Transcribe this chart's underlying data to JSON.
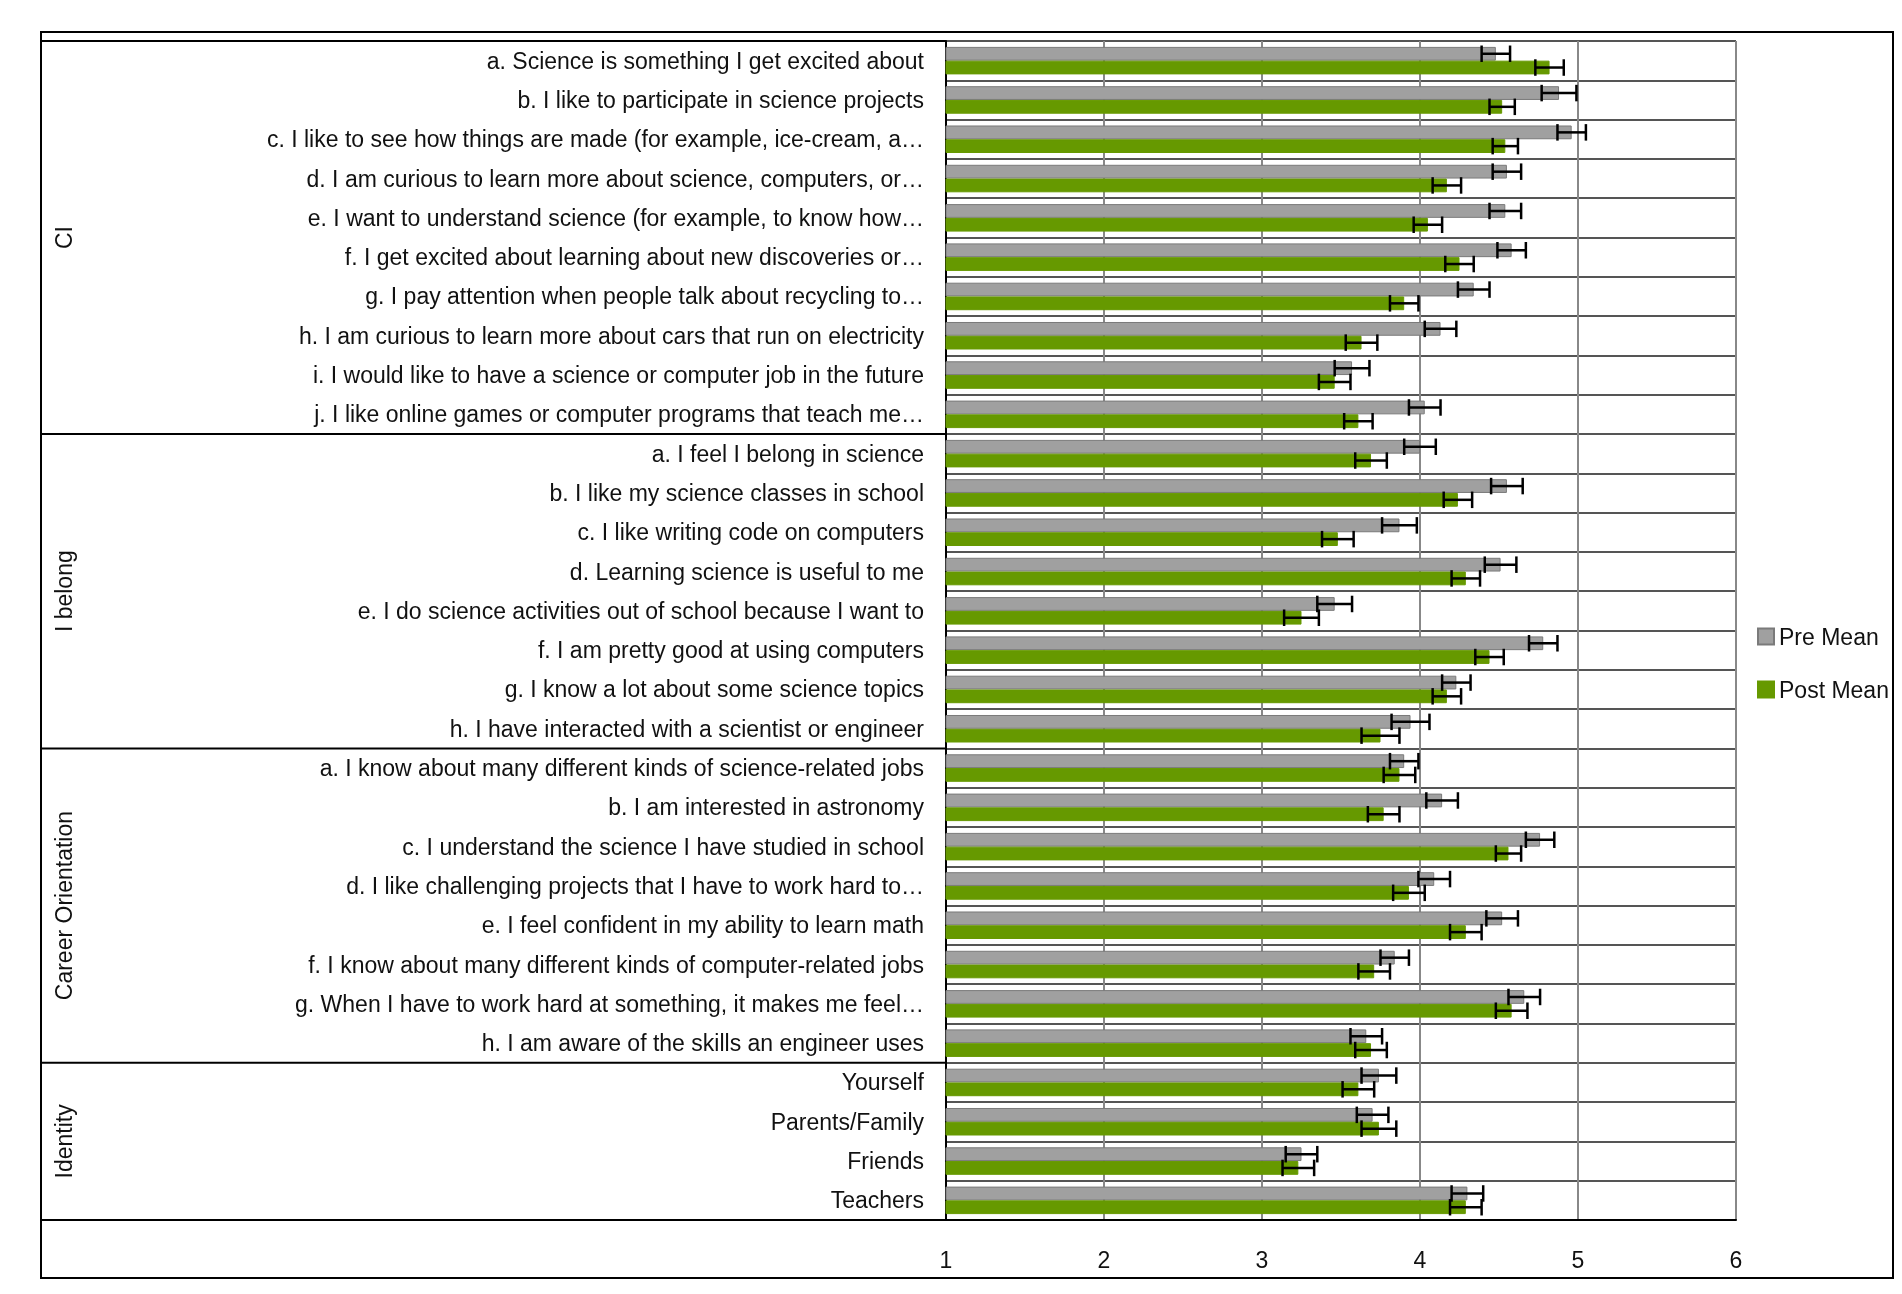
{
  "chart_data": {
    "type": "bar",
    "orientation": "horizontal",
    "categories": [
      "a. Science is something I get excited about",
      "b. I like to participate in science projects",
      "c. I like to see how things are made (for example, ice-cream, a…",
      "d. I am curious to learn more about science, computers, or…",
      "e. I want to understand science (for example, to know how…",
      "f. I get excited about learning about new discoveries or…",
      "g. I pay attention when people talk about recycling to…",
      "h. I am curious to learn more about cars that run on electricity",
      "i. I would like to have a science or computer job in the future",
      "j. I like online games or computer programs that teach me…",
      "a. I feel I belong in science",
      "b. I like my science classes in school",
      "c. I like writing code on computers",
      "d. Learning science is useful to me",
      "e. I do science activities out of school because I want to",
      "f. I am pretty good at using computers",
      "g. I know a lot about some science topics",
      "h. I have interacted with a scientist or engineer",
      "a. I know about many different kinds of science-related jobs",
      "b. I am interested in astronomy",
      "c. I understand the science I have studied in school",
      "d. I like challenging projects that I have to work hard to…",
      "e. I feel confident in my ability to learn math",
      "f. I know about many different kinds of computer-related jobs",
      "g. When I have to work hard at something, it makes me feel…",
      "h. I am aware of the skills an engineer uses",
      "Yourself",
      "Parents/Family",
      "Friends",
      "Teachers"
    ],
    "series": [
      {
        "name": "Pre Mean",
        "color": "#a0a0a0",
        "values": [
          4.48,
          4.88,
          4.96,
          4.55,
          4.54,
          4.58,
          4.34,
          4.13,
          3.57,
          4.03,
          4.0,
          4.55,
          3.87,
          4.51,
          3.46,
          4.78,
          4.23,
          3.94,
          3.9,
          4.14,
          4.76,
          4.09,
          4.52,
          3.84,
          4.66,
          3.66,
          3.74,
          3.7,
          3.25,
          4.3
        ],
        "errors": [
          0.09,
          0.11,
          0.09,
          0.09,
          0.1,
          0.09,
          0.1,
          0.1,
          0.11,
          0.1,
          0.1,
          0.1,
          0.11,
          0.1,
          0.11,
          0.09,
          0.09,
          0.12,
          0.09,
          0.1,
          0.09,
          0.1,
          0.1,
          0.09,
          0.1,
          0.1,
          0.11,
          0.1,
          0.1,
          0.1
        ]
      },
      {
        "name": "Post Mean",
        "color": "#669900",
        "values": [
          4.82,
          4.52,
          4.54,
          4.17,
          4.05,
          4.25,
          3.9,
          3.63,
          3.46,
          3.61,
          3.69,
          4.24,
          3.48,
          4.29,
          3.25,
          4.44,
          4.17,
          3.75,
          3.87,
          3.77,
          4.56,
          3.93,
          4.29,
          3.71,
          4.58,
          3.69,
          3.61,
          3.74,
          3.23,
          4.29
        ],
        "errors": [
          0.09,
          0.08,
          0.08,
          0.09,
          0.09,
          0.09,
          0.09,
          0.1,
          0.1,
          0.09,
          0.1,
          0.09,
          0.1,
          0.09,
          0.11,
          0.09,
          0.09,
          0.12,
          0.1,
          0.1,
          0.08,
          0.1,
          0.1,
          0.1,
          0.1,
          0.1,
          0.1,
          0.11,
          0.1,
          0.1
        ]
      }
    ],
    "xlim": [
      1,
      6
    ],
    "xticks": [
      1,
      2,
      3,
      4,
      5,
      6
    ],
    "grid": true,
    "legend": "right",
    "annotations": [
      "CI",
      "I belong",
      "Career Orientation",
      "Identity"
    ]
  }
}
